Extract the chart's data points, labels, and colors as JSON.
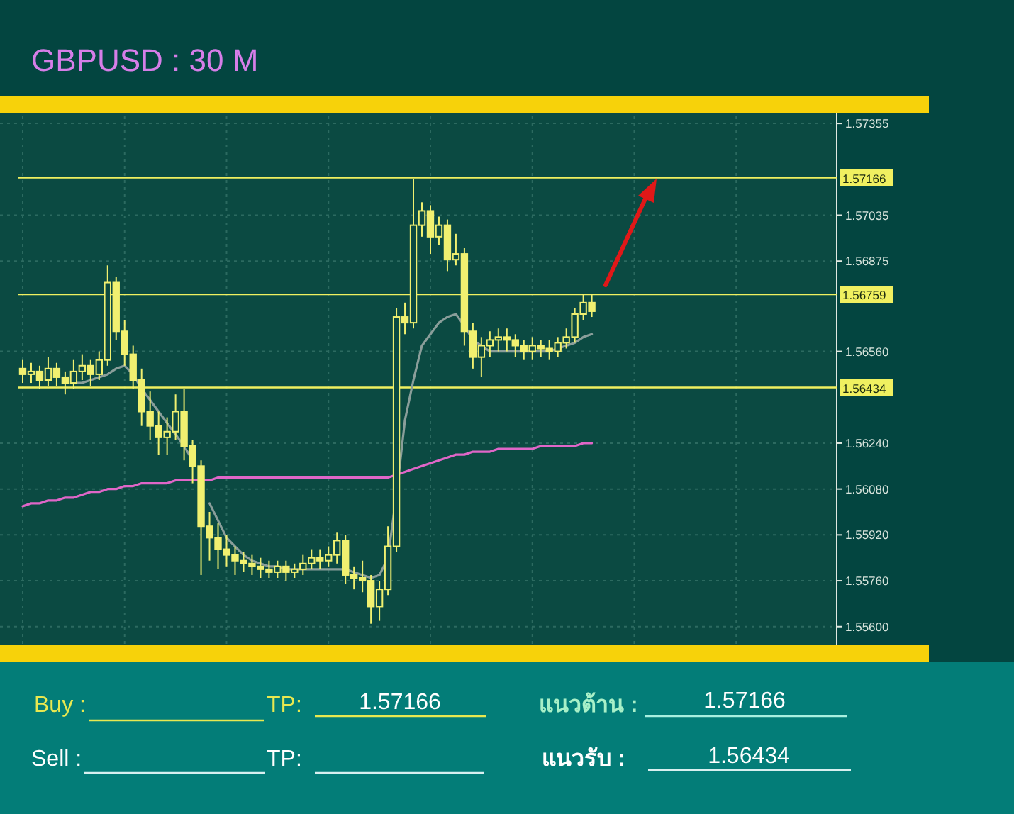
{
  "chart_data": {
    "type": "candlestick",
    "title": "GBPUSD : 30 M",
    "color": "#f0f070",
    "grid": true,
    "tick_labels": "y",
    "categories": [
      null,
      null,
      null,
      null,
      null,
      null,
      null,
      null,
      null,
      null,
      null,
      null,
      null,
      null,
      null,
      null,
      null,
      null,
      null,
      null,
      null,
      null,
      null,
      null,
      null,
      null,
      null,
      null,
      null,
      null,
      null,
      null,
      null,
      null,
      null,
      null,
      null,
      null,
      null,
      null,
      null,
      null,
      null,
      null,
      null,
      null,
      null,
      null,
      null,
      null,
      null,
      null,
      null,
      null,
      null,
      null,
      null,
      null,
      null,
      null,
      null,
      null,
      null,
      null,
      null,
      null,
      null,
      null
    ],
    "ylim": [
      1.5554,
      1.5738
    ],
    "yticks": [
      1.57355,
      1.57035,
      1.56875,
      {
        "value": 1.5656,
        "label": "1.56560"
      },
      {
        "value": 1.5624,
        "label": "1.56240"
      },
      {
        "value": 1.5608,
        "label": "1.56080"
      },
      {
        "value": 1.5592,
        "label": "1.55920"
      },
      {
        "value": 1.5576,
        "label": "1.55760"
      },
      {
        "value": 1.556,
        "label": "1.55600"
      }
    ],
    "ohlc": [
      [
        1.565,
        1.5653,
        1.5645,
        1.5648
      ],
      [
        1.5648,
        1.5652,
        1.5645,
        1.5649
      ],
      [
        1.5649,
        1.5651,
        1.5643,
        1.5646
      ],
      [
        1.5646,
        1.5654,
        1.5644,
        1.565
      ],
      [
        1.565,
        1.5652,
        1.5644,
        1.5647
      ],
      [
        1.5647,
        1.5649,
        1.5641,
        1.5645
      ],
      [
        1.5645,
        1.5653,
        1.5643,
        1.5649
      ],
      [
        1.5649,
        1.5655,
        1.5646,
        1.5651
      ],
      [
        1.5651,
        1.5653,
        1.5644,
        1.5648
      ],
      [
        1.5648,
        1.5656,
        1.5646,
        1.5653
      ],
      [
        1.5653,
        1.5686,
        1.5651,
        1.568
      ],
      [
        1.568,
        1.5682,
        1.566,
        1.5663
      ],
      [
        1.5663,
        1.5667,
        1.5651,
        1.5655
      ],
      [
        1.5655,
        1.5658,
        1.5643,
        1.5646
      ],
      [
        1.5646,
        1.565,
        1.563,
        1.5635
      ],
      [
        1.5635,
        1.5642,
        1.5625,
        1.563
      ],
      [
        1.563,
        1.5635,
        1.562,
        1.5626
      ],
      [
        1.5626,
        1.5633,
        1.562,
        1.5628
      ],
      [
        1.5628,
        1.5641,
        1.5625,
        1.5635
      ],
      [
        1.5635,
        1.5643,
        1.5618,
        1.5623
      ],
      [
        1.5623,
        1.5625,
        1.561,
        1.5616
      ],
      [
        1.5616,
        1.5618,
        1.5578,
        1.5595
      ],
      [
        1.5595,
        1.56,
        1.5583,
        1.5591
      ],
      [
        1.5591,
        1.5596,
        1.558,
        1.5587
      ],
      [
        1.5587,
        1.5592,
        1.5581,
        1.5585
      ],
      [
        1.5585,
        1.5588,
        1.5578,
        1.5583
      ],
      [
        1.5583,
        1.5586,
        1.5579,
        1.5582
      ],
      [
        1.5582,
        1.5585,
        1.5578,
        1.5581
      ],
      [
        1.5581,
        1.5584,
        1.5577,
        1.558
      ],
      [
        1.558,
        1.5583,
        1.5577,
        1.5579
      ],
      [
        1.5579,
        1.5583,
        1.5577,
        1.5581
      ],
      [
        1.5581,
        1.5583,
        1.5576,
        1.5579
      ],
      [
        1.5579,
        1.5582,
        1.5577,
        1.558
      ],
      [
        1.558,
        1.5585,
        1.5578,
        1.5582
      ],
      [
        1.5582,
        1.5587,
        1.558,
        1.5584
      ],
      [
        1.5584,
        1.5587,
        1.558,
        1.5583
      ],
      [
        1.5583,
        1.5588,
        1.5581,
        1.5585
      ],
      [
        1.5585,
        1.5593,
        1.5582,
        1.559
      ],
      [
        1.559,
        1.5592,
        1.5575,
        1.5578
      ],
      [
        1.5578,
        1.5581,
        1.5573,
        1.5577
      ],
      [
        1.5577,
        1.5583,
        1.5572,
        1.5576
      ],
      [
        1.5576,
        1.5578,
        1.5561,
        1.5567
      ],
      [
        1.5567,
        1.5576,
        1.5562,
        1.5573
      ],
      [
        1.5573,
        1.5595,
        1.5571,
        1.5588
      ],
      [
        1.5588,
        1.5671,
        1.5586,
        1.5668
      ],
      [
        1.5668,
        1.5673,
        1.5662,
        1.5666
      ],
      [
        1.5666,
        1.5716,
        1.5664,
        1.57
      ],
      [
        1.57,
        1.5708,
        1.5696,
        1.5705
      ],
      [
        1.5705,
        1.5707,
        1.569,
        1.5696
      ],
      [
        1.5696,
        1.5703,
        1.5693,
        1.57
      ],
      [
        1.57,
        1.5702,
        1.5684,
        1.5688
      ],
      [
        1.5688,
        1.5697,
        1.5686,
        1.569
      ],
      [
        1.569,
        1.5692,
        1.5658,
        1.5663
      ],
      [
        1.5663,
        1.5666,
        1.565,
        1.5654
      ],
      [
        1.5654,
        1.5661,
        1.5647,
        1.5658
      ],
      [
        1.5658,
        1.5663,
        1.5654,
        1.566
      ],
      [
        1.566,
        1.5664,
        1.5656,
        1.5661
      ],
      [
        1.5661,
        1.5664,
        1.5656,
        1.566
      ],
      [
        1.566,
        1.5662,
        1.5654,
        1.5658
      ],
      [
        1.5658,
        1.566,
        1.5653,
        1.5656
      ],
      [
        1.5656,
        1.5661,
        1.5653,
        1.5658
      ],
      [
        1.5658,
        1.566,
        1.5654,
        1.5657
      ],
      [
        1.5657,
        1.566,
        1.5653,
        1.5656
      ],
      [
        1.5656,
        1.5661,
        1.5654,
        1.5659
      ],
      [
        1.5659,
        1.5664,
        1.5657,
        1.5661
      ],
      [
        1.5661,
        1.5671,
        1.5659,
        1.5669
      ],
      [
        1.5669,
        1.5676,
        1.5667,
        1.5673
      ],
      [
        1.5673,
        1.5676,
        1.5668,
        1.567
      ]
    ],
    "series": [
      {
        "type": "line",
        "color": "#e066c8",
        "values": [
          1.5602,
          1.5603,
          1.5603,
          1.5604,
          1.5604,
          1.5605,
          1.5605,
          1.5606,
          1.5607,
          1.5607,
          1.5608,
          1.5608,
          1.5609,
          1.5609,
          1.561,
          1.561,
          1.561,
          1.561,
          1.5611,
          1.5611,
          1.5611,
          1.5611,
          1.5611,
          1.5612,
          1.5612,
          1.5612,
          1.5612,
          1.5612,
          1.5612,
          1.5612,
          1.5612,
          1.5612,
          1.5612,
          1.5612,
          1.5612,
          1.5612,
          1.5612,
          1.5612,
          1.5612,
          1.5612,
          1.5612,
          1.5612,
          1.5612,
          1.5612,
          1.5613,
          1.5614,
          1.5615,
          1.5616,
          1.5617,
          1.5618,
          1.5619,
          1.562,
          1.562,
          1.5621,
          1.5621,
          1.5621,
          1.5622,
          1.5622,
          1.5622,
          1.5622,
          1.5622,
          1.5623,
          1.5623,
          1.5623,
          1.5623,
          1.5623,
          1.5624,
          1.5624
        ]
      },
      {
        "type": "line",
        "color": "#8a9e9a",
        "values": [
          null,
          null,
          null,
          null,
          null,
          null,
          1.5645,
          1.5645,
          1.5646,
          1.5647,
          1.5648,
          1.565,
          1.5651,
          1.5648,
          1.5643,
          1.5639,
          1.5635,
          1.5631,
          1.5627,
          1.5623,
          1.5618,
          null,
          1.5603,
          1.5597,
          1.5591,
          1.5588,
          1.5585,
          1.5583,
          1.5582,
          1.5581,
          1.5581,
          1.558,
          1.558,
          1.558,
          1.558,
          1.558,
          1.558,
          1.558,
          1.558,
          1.5579,
          1.5578,
          1.5577,
          1.5578,
          1.5584,
          1.5606,
          1.5632,
          1.5646,
          1.5658,
          1.5662,
          1.5666,
          1.5668,
          1.5669,
          1.5665,
          1.566,
          1.5658,
          1.5656,
          1.5656,
          1.5656,
          1.5656,
          1.5656,
          1.5656,
          1.5656,
          1.5656,
          1.5657,
          1.5658,
          1.5659,
          1.5661,
          1.5662
        ]
      }
    ],
    "ref_lines": [
      {
        "axis": "y",
        "value": 1.57166,
        "label": "1.57166",
        "color": "#f0f060"
      },
      {
        "axis": "y",
        "value": 1.56759,
        "label": "1.56759",
        "color": "#f0f060"
      },
      {
        "axis": "y",
        "value": 1.56434,
        "label": "1.56434",
        "color": "#f0f060"
      }
    ],
    "annotations": [
      "Buy :",
      "TP:",
      "1.57166",
      "แนวต้าน :",
      "1.57166",
      "Sell :",
      "TP:",
      "แนวรับ  :",
      "1.56434"
    ]
  }
}
